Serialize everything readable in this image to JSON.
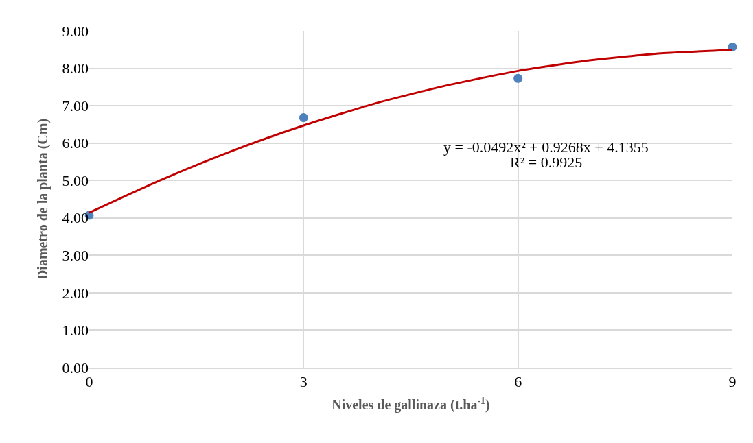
{
  "chart_data": {
    "type": "scatter",
    "xlabel": "Niveles de gallinaza (t.ha$^{-1}$)",
    "ylabel": "Diametro de la planta (Cm)",
    "x": [
      0,
      3,
      6,
      9
    ],
    "series": [
      {
        "color": "#4f81bd",
        "values": [
          4.07,
          6.68,
          7.73,
          8.57
        ],
        "marker": "circle"
      },
      {
        "type": "line",
        "color": "#c00000",
        "x": [
          0,
          1,
          2,
          3,
          4,
          5,
          6,
          7,
          8,
          9
        ],
        "values": [
          4.14,
          5.01,
          5.79,
          6.47,
          7.06,
          7.54,
          7.93,
          8.21,
          8.4,
          8.49
        ],
        "line_style": "solid",
        "marker": "none"
      }
    ],
    "annotations": [
      "y = -0.0492x² + 0.9268x + 4.1355",
      "R² = 0.9925"
    ],
    "xlim": [
      0,
      9
    ],
    "xticks": [
      0,
      3,
      6,
      9
    ],
    "ylim": [
      0,
      9
    ],
    "yticks": [
      {
        "value": 0,
        "label": "0.00"
      },
      {
        "value": 1,
        "label": "1.00"
      },
      {
        "value": 2,
        "label": "2.00"
      },
      {
        "value": 3,
        "label": "3.00"
      },
      {
        "value": 4,
        "label": "4.00"
      },
      {
        "value": 5,
        "label": "5.00"
      },
      {
        "value": 6,
        "label": "6.00"
      },
      {
        "value": 7,
        "label": "7.00"
      },
      {
        "value": 8,
        "label": "8.00"
      },
      {
        "value": 9,
        "label": "9.00"
      }
    ],
    "grid": true
  }
}
